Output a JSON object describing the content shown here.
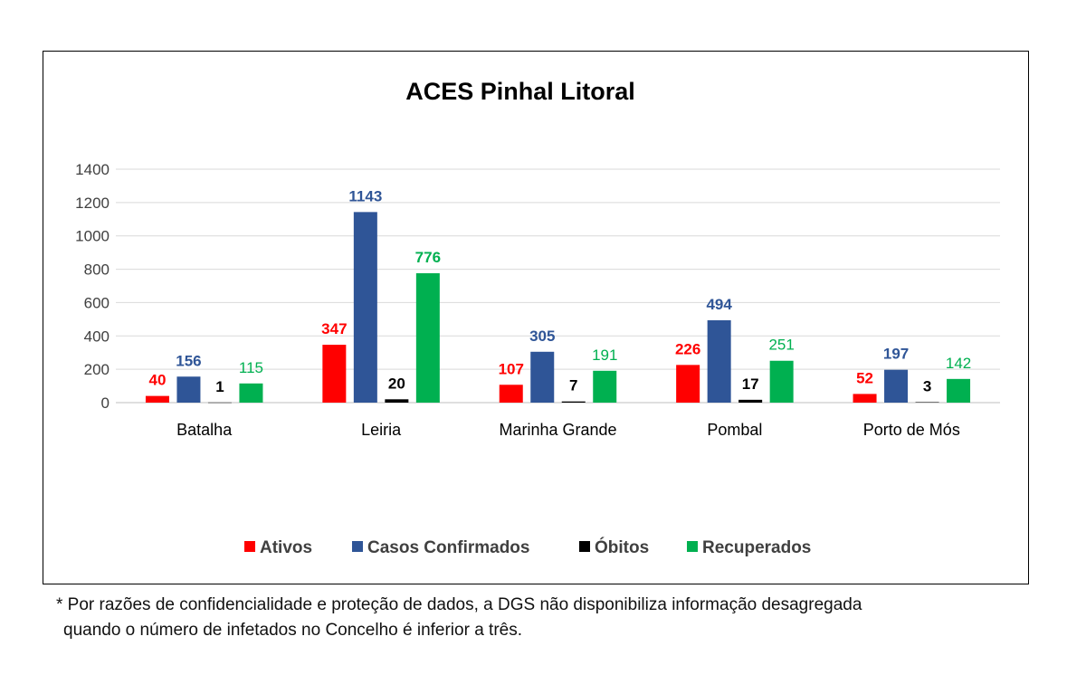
{
  "chart_data": {
    "type": "bar",
    "title": "ACES Pinhal Litoral",
    "categories": [
      "Batalha",
      "Leiria",
      "Marinha Grande",
      "Pombal",
      "Porto de Mós"
    ],
    "series": [
      {
        "name": "Ativos",
        "color": "#ff0000",
        "label_color": "#ff0000",
        "values": [
          40,
          347,
          107,
          226,
          52
        ]
      },
      {
        "name": "Casos Confirmados",
        "color": "#2f5597",
        "label_color": "#2f5597",
        "values": [
          156,
          1143,
          305,
          494,
          197
        ]
      },
      {
        "name": "Óbitos",
        "color": "#000000",
        "label_color": "#000000",
        "values": [
          1,
          20,
          7,
          17,
          3
        ]
      },
      {
        "name": "Recuperados",
        "color": "#00b050",
        "label_color": "#00b050",
        "values": [
          115,
          776,
          191,
          251,
          142
        ]
      }
    ],
    "ylim": [
      0,
      1400
    ],
    "yticks": [
      0,
      200,
      400,
      600,
      800,
      1000,
      1200,
      1400
    ],
    "grid": true,
    "legend_position": "bottom"
  },
  "footnote": {
    "line1": "* Por razões de confidencialidade e proteção de dados, a DGS não disponibiliza informação desagregada",
    "line2": "quando o número de infetados no Concelho é inferior a três."
  }
}
